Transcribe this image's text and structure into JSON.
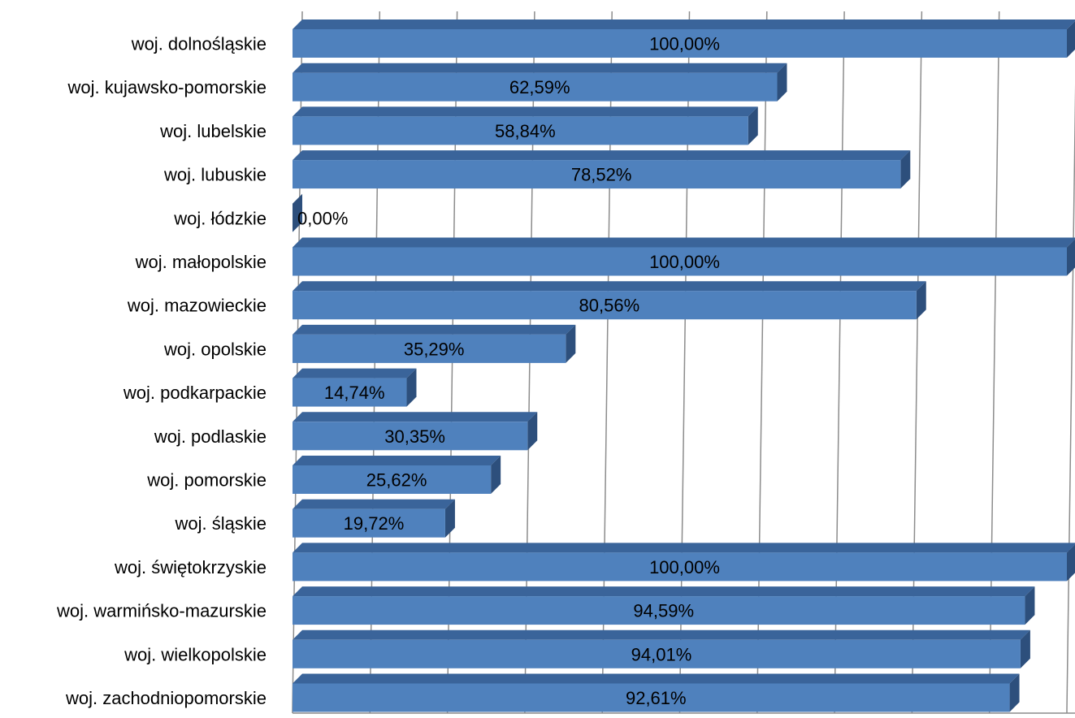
{
  "chart_data": {
    "type": "bar",
    "orientation": "horizontal",
    "style": "3d",
    "categories": [
      "woj. dolnośląskie",
      "woj. kujawsko-pomorskie",
      "woj. lubelskie",
      "woj. lubuskie",
      "woj. łódzkie",
      "woj. małopolskie",
      "woj. mazowieckie",
      "woj. opolskie",
      "woj. podkarpackie",
      "woj. podlaskie",
      "woj. pomorskie",
      "woj. śląskie",
      "woj. świętokrzyskie",
      "woj. warmińsko-mazurskie",
      "woj. wielkopolskie",
      "woj. zachodniopomorskie"
    ],
    "values": [
      100,
      62.59,
      58.84,
      78.52,
      0,
      100,
      80.56,
      35.29,
      14.74,
      30.35,
      25.62,
      19.72,
      100,
      94.59,
      94.01,
      92.61
    ],
    "data_labels": [
      "100,00%",
      "62,59%",
      "58,84%",
      "78,52%",
      "0,00%",
      "100,00%",
      "80,56%",
      "35,29%",
      "14,74%",
      "30,35%",
      "25,62%",
      "19,72%",
      "100,00%",
      "94,59%",
      "94,01%",
      "92,61%"
    ],
    "title": "",
    "xlabel": "",
    "ylabel": "",
    "xlim": [
      0,
      100
    ],
    "x_gridlines": [
      0,
      10,
      20,
      30,
      40,
      50,
      60,
      70,
      80,
      90,
      100
    ],
    "grid": true,
    "legend": "none",
    "colors": {
      "bar_front": "#4f81bd",
      "bar_top": "#3a649a",
      "bar_side": "#2d4f7c",
      "grid": "#8c8c8c",
      "text": "#000000"
    }
  }
}
